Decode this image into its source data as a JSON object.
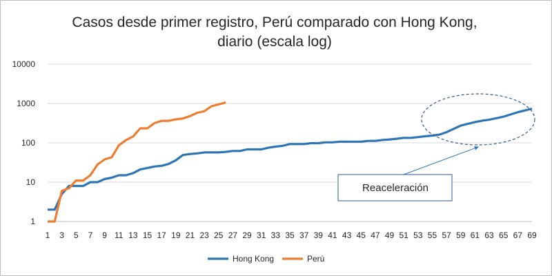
{
  "chart_data": {
    "type": "line",
    "title_line1": "Casos desde primer registro, Perú comparado con Hong Kong,",
    "title_line2": "diario (escala log)",
    "xlabel": "",
    "ylabel": "",
    "y_scale": "log",
    "ylim": [
      1,
      10000
    ],
    "y_ticks": [
      1,
      10,
      100,
      1000,
      10000
    ],
    "xlim": [
      1,
      69
    ],
    "x_ticks": [
      1,
      3,
      5,
      7,
      9,
      11,
      13,
      15,
      17,
      19,
      21,
      23,
      25,
      27,
      29,
      31,
      33,
      35,
      37,
      39,
      41,
      43,
      45,
      47,
      49,
      51,
      53,
      55,
      57,
      59,
      61,
      63,
      65,
      67,
      69
    ],
    "grid": true,
    "legend_position": "bottom",
    "series": [
      {
        "name": "Hong Kong",
        "color": "#2e75b6",
        "x": [
          1,
          2,
          3,
          4,
          5,
          6,
          7,
          8,
          9,
          10,
          11,
          12,
          13,
          14,
          15,
          16,
          17,
          18,
          19,
          20,
          21,
          22,
          23,
          24,
          25,
          26,
          27,
          28,
          29,
          30,
          31,
          32,
          33,
          34,
          35,
          36,
          37,
          38,
          39,
          40,
          41,
          42,
          43,
          44,
          45,
          46,
          47,
          48,
          49,
          50,
          51,
          52,
          53,
          54,
          55,
          56,
          57,
          58,
          59,
          60,
          61,
          62,
          63,
          64,
          65,
          66,
          67,
          68,
          69
        ],
        "values": [
          2,
          2,
          5,
          8,
          8,
          8,
          10,
          10,
          12,
          13,
          15,
          15,
          17,
          21,
          23,
          25,
          26,
          29,
          36,
          49,
          52,
          54,
          57,
          57,
          57,
          59,
          62,
          62,
          68,
          68,
          68,
          75,
          80,
          84,
          93,
          93,
          93,
          98,
          98,
          103,
          103,
          107,
          107,
          107,
          107,
          112,
          112,
          118,
          122,
          127,
          134,
          134,
          140,
          147,
          153,
          162,
          186,
          226,
          275,
          305,
          338,
          365,
          389,
          423,
          463,
          526,
          600,
          665,
          740
        ]
      },
      {
        "name": "Perú",
        "color": "#ed7d31",
        "x": [
          1,
          2,
          3,
          4,
          5,
          6,
          7,
          8,
          9,
          10,
          11,
          12,
          13,
          14,
          15,
          16,
          17,
          18,
          19,
          20,
          21,
          22,
          23,
          24,
          25,
          26
        ],
        "values": [
          1,
          1,
          6,
          7,
          11,
          11,
          15,
          28,
          38,
          43,
          86,
          117,
          145,
          234,
          234,
          318,
          363,
          363,
          395,
          416,
          480,
          580,
          635,
          852,
          950,
          1065
        ]
      }
    ],
    "annotations": [
      {
        "label": "Reaceleración",
        "target_x": 62,
        "target_y": 400
      }
    ]
  }
}
